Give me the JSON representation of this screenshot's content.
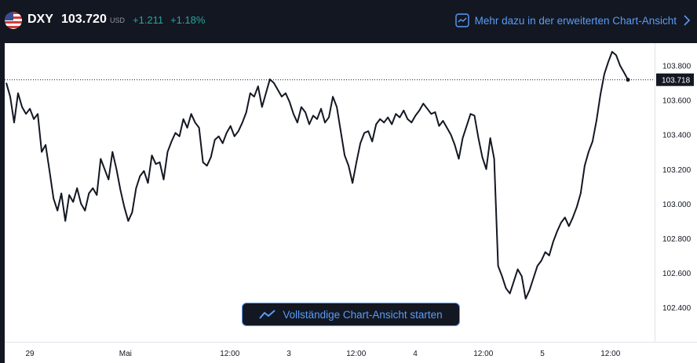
{
  "header": {
    "flag_icon": "us-flag-icon",
    "symbol": "DXY",
    "price": "103.720",
    "currency": "USD",
    "change": "+1.211",
    "change_percent": "+1.18%",
    "more_link": "Mehr dazu in der erweiterten Chart-Ansicht",
    "positive_color": "#26a69a",
    "accent_color": "#5b9cf6"
  },
  "start_button": {
    "label": "Vollständige Chart-Ansicht starten",
    "icon": "chart-line-icon"
  },
  "chart_data": {
    "type": "line",
    "ylim": [
      102.2,
      103.93
    ],
    "y_ticks": [
      "102.400",
      "102.600",
      "102.800",
      "103.000",
      "103.200",
      "103.400",
      "103.600",
      "103.800"
    ],
    "x_ticks": [
      "29",
      "Mai",
      "12:00",
      "3",
      "12:00",
      "4",
      "12:00",
      "5",
      "12:00"
    ],
    "last_price_label": "103.718",
    "last_value": 103.718,
    "series": [
      {
        "values": [
          103.7,
          103.62,
          103.47,
          103.64,
          103.56,
          103.52,
          103.55,
          103.49,
          103.52,
          103.3,
          103.34,
          103.19,
          103.03,
          102.96,
          103.06,
          102.9,
          103.05,
          103.01,
          103.09,
          103.0,
          102.96,
          103.06,
          103.09,
          103.05,
          103.26,
          103.2,
          103.14,
          103.3,
          103.2,
          103.08,
          102.98,
          102.9,
          102.95,
          103.09,
          103.16,
          103.19,
          103.12,
          103.28,
          103.23,
          103.24,
          103.14,
          103.3,
          103.36,
          103.41,
          103.39,
          103.49,
          103.44,
          103.52,
          103.47,
          103.44,
          103.24,
          103.22,
          103.27,
          103.37,
          103.39,
          103.35,
          103.41,
          103.45,
          103.39,
          103.42,
          103.47,
          103.53,
          103.64,
          103.62,
          103.68,
          103.56,
          103.64,
          103.72,
          103.7,
          103.66,
          103.62,
          103.64,
          103.59,
          103.52,
          103.47,
          103.56,
          103.53,
          103.46,
          103.51,
          103.49,
          103.55,
          103.47,
          103.5,
          103.62,
          103.56,
          103.42,
          103.28,
          103.22,
          103.12,
          103.24,
          103.35,
          103.41,
          103.42,
          103.36,
          103.46,
          103.49,
          103.47,
          103.5,
          103.46,
          103.52,
          103.5,
          103.54,
          103.49,
          103.47,
          103.51,
          103.54,
          103.58,
          103.55,
          103.52,
          103.53,
          103.45,
          103.48,
          103.44,
          103.4,
          103.34,
          103.26,
          103.38,
          103.45,
          103.52,
          103.51,
          103.38,
          103.27,
          103.2,
          103.38,
          103.26,
          102.64,
          102.58,
          102.51,
          102.48,
          102.55,
          102.62,
          102.58,
          102.45,
          102.5,
          102.57,
          102.64,
          102.67,
          102.72,
          102.7,
          102.78,
          102.84,
          102.89,
          102.92,
          102.87,
          102.92,
          102.98,
          103.06,
          103.22,
          103.3,
          103.36,
          103.48,
          103.63,
          103.75,
          103.82,
          103.88,
          103.86,
          103.8,
          103.76,
          103.718
        ]
      }
    ]
  }
}
